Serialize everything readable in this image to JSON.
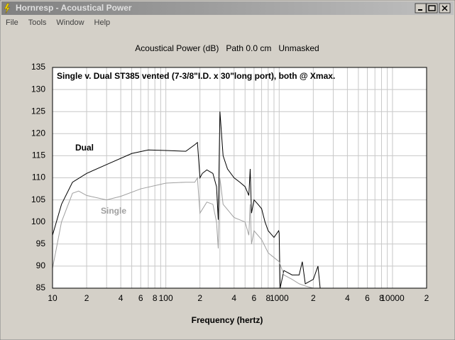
{
  "window": {
    "title": "Hornresp - Acoustical Power",
    "menu": [
      "File",
      "Tools",
      "Window",
      "Help"
    ]
  },
  "chart_data": {
    "type": "line",
    "title": "Acoustical Power (dB)   Path 0.0 cm   Unmasked",
    "subtitle": "Single v. Dual ST385 vented (7-3/8\"I.D. x 30\"long port), both @ Xmax.",
    "x_label": "Frequency (hertz)",
    "annotations": [
      "Dual",
      "Single"
    ],
    "log_x": true,
    "grid": true,
    "xlim": [
      10,
      20000
    ],
    "ylim": [
      85,
      135
    ],
    "yticks": [
      85,
      90,
      95,
      100,
      105,
      110,
      115,
      120,
      125,
      130,
      135
    ],
    "xticks": [
      10,
      {
        "value": 20,
        "label": "2"
      },
      {
        "value": 40,
        "label": "4"
      },
      {
        "value": 60,
        "label": "6"
      },
      {
        "value": 80,
        "label": "8"
      },
      100,
      {
        "value": 200,
        "label": "2"
      },
      {
        "value": 400,
        "label": "4"
      },
      {
        "value": 600,
        "label": "6"
      },
      {
        "value": 800,
        "label": "8"
      },
      1000,
      {
        "value": 2000,
        "label": "2"
      },
      {
        "value": 4000,
        "label": "4"
      },
      {
        "value": 6000,
        "label": "6"
      },
      {
        "value": 8000,
        "label": "8"
      },
      10000,
      {
        "value": 20000,
        "label": "2"
      }
    ],
    "x_minor_ticks": [
      30,
      50,
      70,
      90,
      300,
      500,
      700,
      900,
      3000,
      5000,
      7000,
      9000
    ],
    "series": [
      {
        "name": "Dual",
        "color": "#000000",
        "x": [
          10,
          12,
          15,
          20,
          30,
          50,
          70,
          100,
          150,
          180,
          190,
          200,
          210,
          230,
          260,
          280,
          290,
          300,
          320,
          350,
          400,
          450,
          500,
          540,
          555,
          570,
          600,
          650,
          700,
          750,
          800,
          900,
          990,
          1000,
          1020,
          1100,
          1300,
          1500,
          1600,
          1700,
          2000,
          2200,
          2300
        ],
        "values": [
          97,
          104,
          109,
          111,
          113,
          115.5,
          116.3,
          116.2,
          116,
          117.5,
          118,
          110,
          111,
          111.8,
          111,
          108,
          100.5,
          125,
          115,
          112,
          110,
          109,
          108,
          106,
          112,
          102,
          105,
          104,
          103,
          100,
          98,
          96.5,
          98,
          97.5,
          85,
          89,
          88,
          88,
          91,
          86,
          87,
          90,
          85
        ]
      },
      {
        "name": "Single",
        "color": "#a0a0a0",
        "x": [
          10,
          12,
          15,
          17,
          20,
          30,
          40,
          60,
          100,
          150,
          180,
          190,
          200,
          230,
          260,
          280,
          290,
          300,
          320,
          400,
          500,
          540,
          555,
          570,
          600,
          700,
          800,
          1000,
          1100,
          1300,
          1500,
          1700,
          2000
        ],
        "values": [
          89.5,
          100,
          106.5,
          107,
          106,
          105,
          105.8,
          107.5,
          108.8,
          109,
          109,
          110,
          102,
          104.5,
          104,
          100,
          94,
          110,
          104,
          101,
          100,
          97,
          104,
          95,
          98,
          96,
          93,
          91,
          88,
          87,
          86,
          85.5,
          85
        ]
      }
    ]
  }
}
